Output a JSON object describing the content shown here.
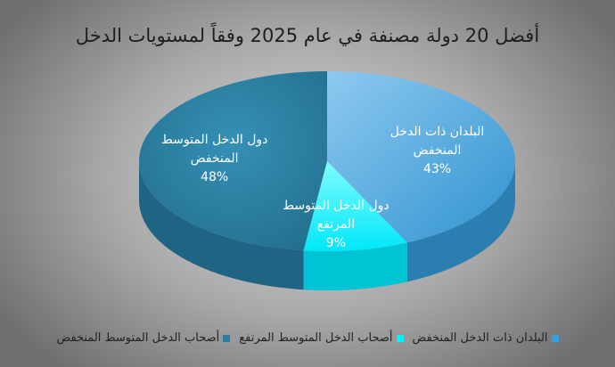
{
  "chart_data": {
    "type": "pie",
    "title": "أفضل 20 دولة مصنفة في عام 2025 وفقاً لمستويات الدخل",
    "slices": [
      {
        "label": "البلدان ذات الدخل المنخفض",
        "label_lines": [
          "البلدان ذات الدخل",
          "المنخفض"
        ],
        "value": 43,
        "value_text": "43%",
        "color": "#3a9fd8",
        "side_color": "#2a7fb0"
      },
      {
        "label": "دول الدخل المتوسط المرتفع",
        "label_lines": [
          "دول الدخل المتوسط",
          "المرتفع"
        ],
        "value": 9,
        "value_text": "9%",
        "color": "#00f0ff",
        "side_color": "#00c4d4"
      },
      {
        "label": "دول الدخل المتوسط المنخفض",
        "label_lines": [
          "دول الدخل المتوسط",
          "المنخفض"
        ],
        "value": 48,
        "value_text": "48%",
        "color": "#2a7ea0",
        "side_color": "#1f6482"
      }
    ],
    "legend": {
      "placement": "bottom",
      "entries": [
        {
          "text": "البلدان ذات الدخل المنخفض",
          "color": "#3a9fd8"
        },
        {
          "text": "أصحاب الدخل المتوسط المرتفع",
          "color": "#00f0ff"
        },
        {
          "text": "أصحاب الدخل المتوسط المنخفض",
          "color": "#2a7ea0"
        }
      ]
    }
  }
}
